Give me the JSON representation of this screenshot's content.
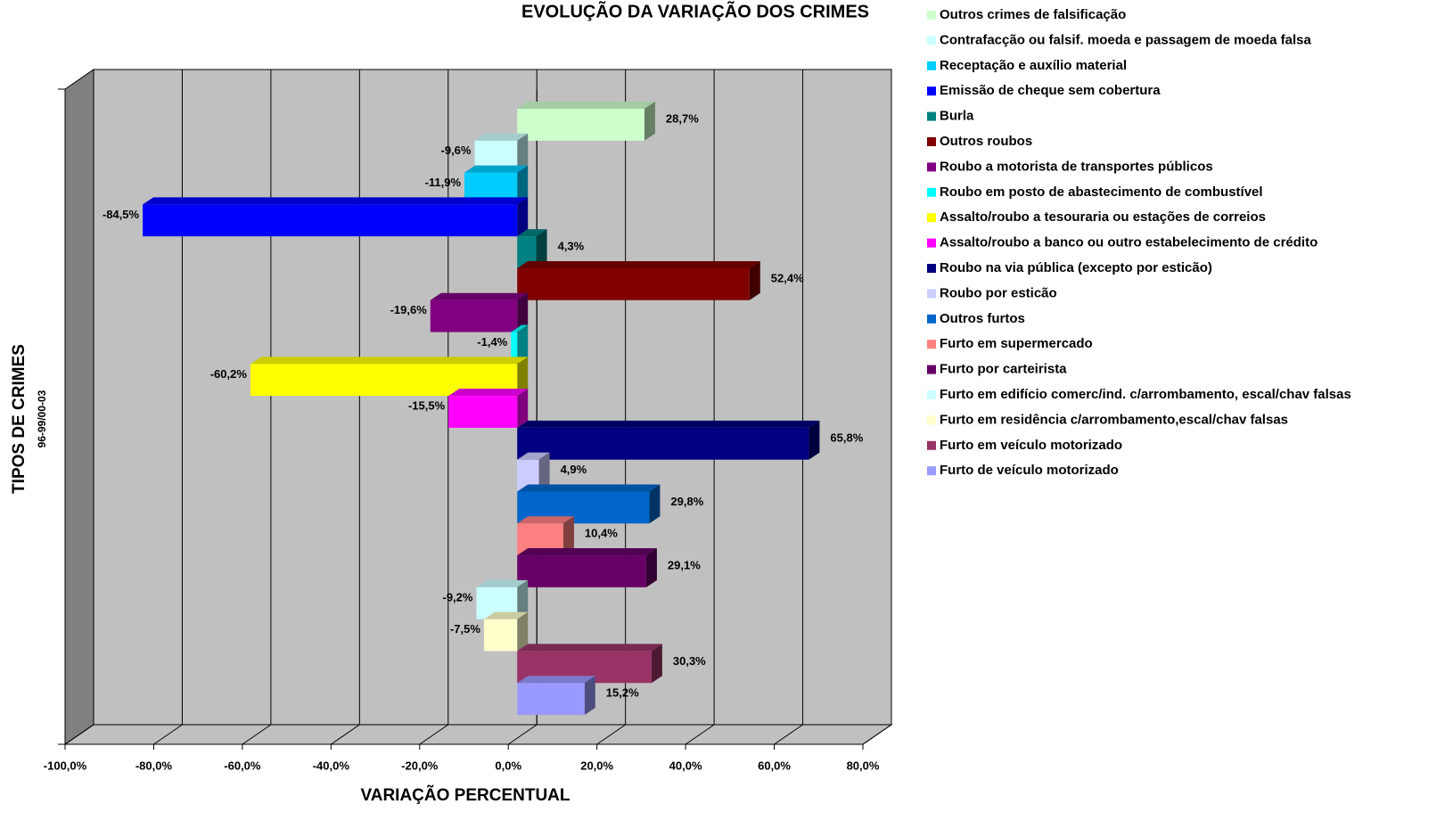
{
  "chart_data": {
    "type": "bar3d_horizontal",
    "title": "EVOLUÇÃO DA VARIAÇÃO DOS CRIMES",
    "x_label": "VARIAÇÃO PERCENTUAL",
    "y_label": "TIPOS DE CRIMES",
    "y_sublabel": "96-99/00-03",
    "categories": [
      "Outros crimes de falsificação",
      "Contrafacção ou falsif. moeda e passagem de moeda falsa",
      "Receptação e auxílio material",
      "Emissão de cheque sem cobertura",
      "Burla",
      "Outros roubos",
      "Roubo a motorista de transportes públicos",
      "Roubo em posto de abastecimento de combustível",
      "Assalto/roubo a tesouraria ou estações de correios",
      "Assalto/roubo a banco ou outro estabelecimento de crédito",
      "Roubo na via pública (excepto por esticão)",
      "Roubo por esticão",
      "Outros furtos",
      "Furto em supermercado",
      "Furto por carteirista",
      "Furto em edifício comerc/ind. c/arrombamento, escal/chav falsas",
      "Furto em residência c/arrombamento,escal/chav falsas",
      "Furto em veículo motorizado",
      "Furto de veículo motorizado"
    ],
    "values": [
      28.7,
      -9.6,
      -11.9,
      -84.5,
      4.3,
      52.4,
      -19.6,
      -1.4,
      -60.2,
      -15.5,
      65.8,
      4.9,
      29.8,
      10.4,
      29.1,
      -9.2,
      -7.5,
      30.3,
      15.2
    ],
    "value_labels": [
      "28,7%",
      "-9,6%",
      "-11,9%",
      "-84,5%",
      "4,3%",
      "52,4%",
      "-19,6%",
      "-1,4%",
      "-60,2%",
      "-15,5%",
      "65,8%",
      "4,9%",
      "29,8%",
      "10,4%",
      "29,1%",
      "-9,2%",
      "-7,5%",
      "30,3%",
      "15,2%"
    ],
    "colors": [
      "#ccffcc",
      "#ccffff",
      "#00ccff",
      "#0000ff",
      "#008080",
      "#800000",
      "#800080",
      "#00ffff",
      "#ffff00",
      "#ff00ff",
      "#000080",
      "#ccccff",
      "#0066cc",
      "#ff8080",
      "#660066",
      "#ccffff",
      "#ffffcc",
      "#993366",
      "#9999ff"
    ],
    "xlim": [
      -100,
      80
    ],
    "xticks": [
      {
        "value": -100,
        "label": "-100,0%"
      },
      {
        "value": -80,
        "label": "-80,0%"
      },
      {
        "value": -60,
        "label": "-60,0%"
      },
      {
        "value": -40,
        "label": "-40,0%"
      },
      {
        "value": -20,
        "label": "-20,0%"
      },
      {
        "value": 0,
        "label": "0,0%"
      },
      {
        "value": 20,
        "label": "20,0%"
      },
      {
        "value": 40,
        "label": "40,0%"
      },
      {
        "value": 60,
        "label": "60,0%"
      },
      {
        "value": 80,
        "label": "80,0%"
      }
    ],
    "grid": true,
    "legend": "right"
  }
}
